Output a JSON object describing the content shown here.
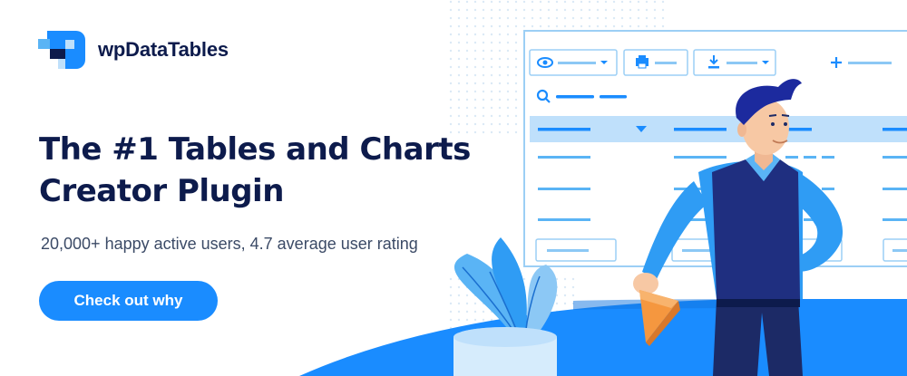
{
  "brand": {
    "name": "wpDataTables"
  },
  "hero": {
    "headline_line1": "The #1 Tables and Charts",
    "headline_line2": "Creator Plugin",
    "subtitle": "20,000+ happy active users, 4.7 average user rating",
    "cta_label": "Check out why"
  },
  "illustration": {
    "icons": [
      "eye-icon",
      "printer-icon",
      "download-icon",
      "plus-icon",
      "search-icon",
      "sort-arrow-icon"
    ]
  },
  "colors": {
    "navy": "#0d1b4c",
    "accent": "#1a8cff",
    "light_blue": "#bfe0fb",
    "table_line": "#5ab4f5"
  }
}
